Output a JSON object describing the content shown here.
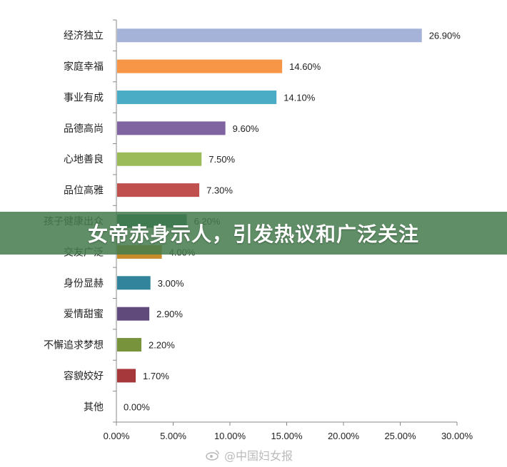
{
  "chart_data": {
    "type": "bar",
    "orientation": "horizontal",
    "categories": [
      "经济独立",
      "家庭幸福",
      "事业有成",
      "品德高尚",
      "心地善良",
      "品位高雅",
      "孩子健康出众",
      "交友广泛",
      "身份显赫",
      "爱情甜蜜",
      "不懈追求梦想",
      "容貌姣好",
      "其他"
    ],
    "values": [
      26.9,
      14.6,
      14.1,
      9.6,
      7.5,
      7.3,
      6.2,
      4.0,
      3.0,
      2.9,
      2.2,
      1.7,
      0.0
    ],
    "value_labels": [
      "26.90%",
      "14.60%",
      "14.10%",
      "9.60%",
      "7.50%",
      "7.30%",
      "6.20%",
      "4.00%",
      "3.00%",
      "2.90%",
      "2.20%",
      "1.70%",
      "0.00%"
    ],
    "colors": [
      "#a5b3d9",
      "#f79646",
      "#4bacc6",
      "#8064a2",
      "#9bbb59",
      "#c0504d",
      "#1f6b5c",
      "#c98b2a",
      "#31849b",
      "#604a7b",
      "#77933c",
      "#a6373a",
      "#999999"
    ],
    "xlim": [
      0,
      30
    ],
    "x_ticks": [
      0,
      5,
      10,
      15,
      20,
      25,
      30
    ],
    "x_tick_labels": [
      "0.00%",
      "5.00%",
      "10.00%",
      "15.00%",
      "20.00%",
      "25.00%",
      "30.00%"
    ],
    "title": "",
    "xlabel": "",
    "ylabel": "",
    "grid": false
  },
  "banner": {
    "headline": "女帝赤身示人，引发热议和广泛关注"
  },
  "watermark": {
    "text": "@中国妇女报",
    "icon": "weibo-icon"
  }
}
